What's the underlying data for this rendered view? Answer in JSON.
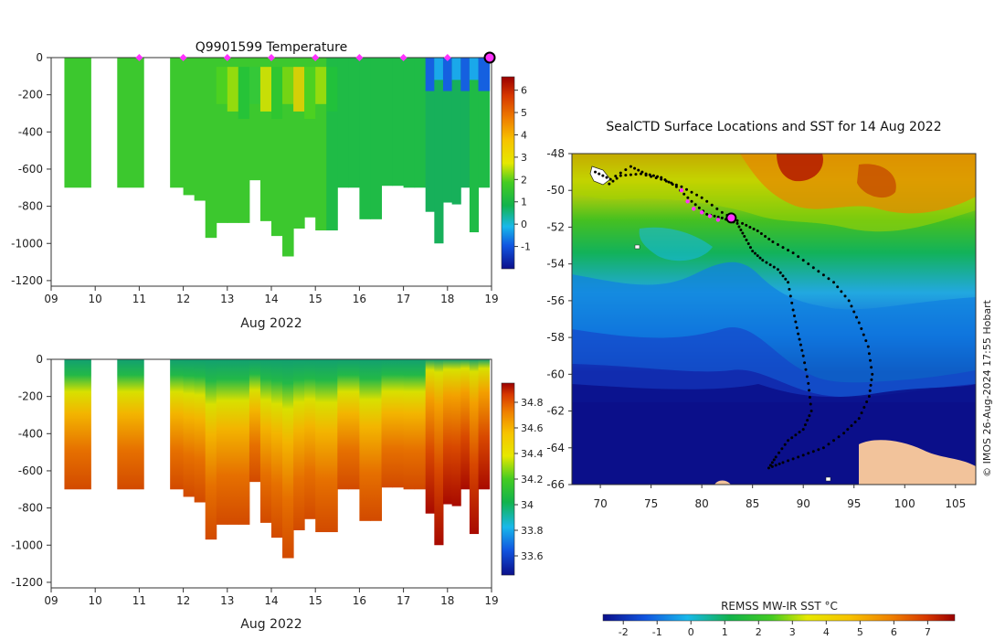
{
  "chart_data": [
    {
      "type": "heatmap",
      "title": "Q9901599  Temperature",
      "xlabel": "Aug 2022",
      "xticks": [
        "09",
        "10",
        "11",
        "12",
        "13",
        "14",
        "15",
        "16",
        "17",
        "18",
        "19"
      ],
      "xlim": [
        9,
        19
      ],
      "yticks": [
        "0",
        "-200",
        "-400",
        "-600",
        "-800",
        "-1000",
        "-1200"
      ],
      "ylim": [
        -1230,
        0
      ],
      "colorbar_ticks": [
        "-1",
        "0",
        "1",
        "2",
        "3",
        "4",
        "5",
        "6"
      ],
      "colorbar_range": [
        -2,
        6.6
      ],
      "surface_markers_day": [
        11,
        12,
        13,
        14,
        15,
        16,
        17,
        18
      ],
      "last_surfacing_day": 19,
      "profile_times_day": [
        9.3,
        10.5,
        11.7,
        12.0,
        12.25,
        12.5,
        12.75,
        13.0,
        13.25,
        13.5,
        13.75,
        14.0,
        14.25,
        14.5,
        14.75,
        15.0,
        15.25,
        15.5,
        15.75,
        16.0,
        16.25,
        16.5,
        16.75,
        17.0,
        17.25,
        17.5,
        17.7,
        17.9,
        18.1,
        18.3,
        18.5,
        18.7
      ],
      "profile_depth_m": [
        700,
        700,
        700,
        740,
        770,
        970,
        890,
        890,
        890,
        660,
        880,
        960,
        1070,
        920,
        860,
        930,
        930,
        700,
        700,
        870,
        870,
        690,
        690,
        700,
        700,
        830,
        1000,
        780,
        790,
        700,
        940,
        700
      ]
    },
    {
      "type": "heatmap",
      "title": "",
      "xlabel": "Aug 2022",
      "xticks": [
        "09",
        "10",
        "11",
        "12",
        "13",
        "14",
        "15",
        "16",
        "17",
        "18",
        "19"
      ],
      "xlim": [
        9,
        19
      ],
      "yticks": [
        "0",
        "-200",
        "-400",
        "-600",
        "-800",
        "-1000",
        "-1200"
      ],
      "ylim": [
        -1230,
        0
      ],
      "colorbar_ticks": [
        "33.6",
        "33.8",
        "34",
        "34.2",
        "34.4",
        "34.6",
        "34.8"
      ],
      "colorbar_range": [
        33.45,
        34.95
      ]
    },
    {
      "type": "heatmap",
      "title": "SealCTD Surface Locations and SST for 14 Aug 2022",
      "xticks": [
        "70",
        "75",
        "80",
        "85",
        "90",
        "95",
        "100",
        "105"
      ],
      "xlim": [
        67.2,
        107
      ],
      "yticks": [
        "-48",
        "-50",
        "-52",
        "-54",
        "-56",
        "-58",
        "-60",
        "-62",
        "-64",
        "-66"
      ],
      "ylim": [
        -66,
        -48
      ],
      "track": [
        [
          69.5,
          -49.0
        ],
        [
          71,
          -49.4
        ],
        [
          73,
          -48.7
        ],
        [
          74.5,
          -49.1
        ],
        [
          76,
          -49.3
        ],
        [
          77.5,
          -49.8
        ],
        [
          79,
          -50.6
        ],
        [
          80.5,
          -51.3
        ],
        [
          82,
          -51.5
        ],
        [
          83.5,
          -51.8
        ],
        [
          84.2,
          -52.5
        ],
        [
          85,
          -53.3
        ],
        [
          86,
          -53.8
        ],
        [
          87.5,
          -54.3
        ],
        [
          88.5,
          -55
        ],
        [
          89,
          -56.5
        ],
        [
          89.5,
          -57.8
        ],
        [
          90,
          -59
        ],
        [
          90.5,
          -60.5
        ],
        [
          90.8,
          -62
        ],
        [
          90,
          -63
        ],
        [
          88.5,
          -63.6
        ],
        [
          87.3,
          -64.5
        ],
        [
          86.6,
          -65.1
        ],
        [
          88,
          -64.8
        ],
        [
          90,
          -64.4
        ],
        [
          92,
          -64
        ],
        [
          94,
          -63.2
        ],
        [
          95.5,
          -62.4
        ],
        [
          96.5,
          -61.2
        ],
        [
          96.8,
          -60
        ],
        [
          96.4,
          -58.5
        ],
        [
          95.5,
          -57.2
        ],
        [
          94.5,
          -56
        ],
        [
          93,
          -55
        ],
        [
          91,
          -54.2
        ],
        [
          89,
          -53.4
        ],
        [
          87,
          -52.8
        ],
        [
          85.5,
          -52.2
        ],
        [
          84,
          -51.8
        ],
        [
          82,
          -51.2
        ],
        [
          80,
          -50.4
        ],
        [
          78,
          -49.8
        ],
        [
          76,
          -49.4
        ],
        [
          74,
          -49.1
        ],
        [
          72,
          -49.2
        ],
        [
          70.5,
          -49.8
        ]
      ],
      "recent_positions": [
        [
          78.0,
          -50.0
        ],
        [
          78.6,
          -50.6
        ],
        [
          79.2,
          -51.0
        ],
        [
          80.0,
          -51.2
        ],
        [
          80.8,
          -51.4
        ],
        [
          81.6,
          -51.6
        ]
      ],
      "current_position": [
        82.9,
        -51.5
      ],
      "side_label": "© IMOS 26-Aug-2024 17:55 Hobart"
    },
    {
      "type": "colorbar",
      "title": "REMSS MW-IR SST °C",
      "ticks": [
        "-2",
        "-1",
        "0",
        "1",
        "2",
        "3",
        "4",
        "5",
        "6",
        "7"
      ],
      "range": [
        -2.6,
        7.8
      ]
    }
  ]
}
